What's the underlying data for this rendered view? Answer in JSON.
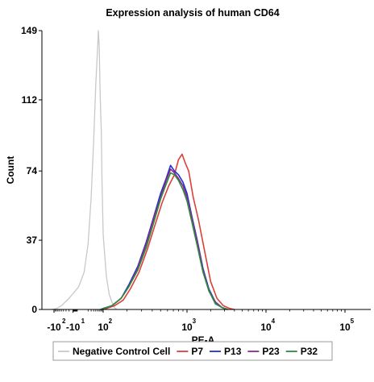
{
  "chart_data": {
    "type": "line",
    "title": "Expression analysis of human CD64",
    "xlabel": "PE-A",
    "ylabel": "Count",
    "x_scale": "biexponential",
    "xlim": [
      -200,
      100000
    ],
    "ylim": [
      0,
      149
    ],
    "grid": false,
    "legend_position": "bottom",
    "y_ticks": [
      {
        "value": 0,
        "label": "0"
      },
      {
        "value": 37,
        "label": "37"
      },
      {
        "value": 74,
        "label": "74"
      },
      {
        "value": 112,
        "label": "112"
      },
      {
        "value": 149,
        "label": "149"
      }
    ],
    "x_ticks": [
      {
        "value": -100,
        "base": "-10",
        "exp": "2"
      },
      {
        "value": -10,
        "base": "-10",
        "exp": "1"
      },
      {
        "value": 100,
        "base": "10",
        "exp": "2"
      },
      {
        "value": 1000,
        "base": "10",
        "exp": "3"
      },
      {
        "value": 10000,
        "base": "10",
        "exp": "4"
      },
      {
        "value": 100000,
        "base": "10",
        "exp": "5"
      }
    ],
    "series": [
      {
        "name": "Negative Control Cell",
        "color": "#c8c8c8",
        "x": [
          -120,
          -80,
          -50,
          -20,
          0,
          10,
          20,
          30,
          40,
          50,
          60,
          65,
          70,
          75,
          80,
          85,
          90,
          100,
          110,
          120,
          130,
          140,
          150
        ],
        "y": [
          0,
          0.5,
          2,
          6,
          12,
          20,
          35,
          60,
          90,
          120,
          140,
          149,
          140,
          120,
          105,
          95,
          70,
          40,
          18,
          8,
          4,
          1,
          0
        ]
      },
      {
        "name": "P7",
        "color": "#d9413a",
        "x": [
          90,
          110,
          140,
          180,
          220,
          280,
          350,
          430,
          520,
          620,
          720,
          800,
          880,
          960,
          1050,
          1200,
          1400,
          1700,
          2000,
          2400,
          2900,
          3500,
          4000
        ],
        "y": [
          0,
          0.5,
          2,
          5,
          11,
          20,
          32,
          45,
          57,
          66,
          72,
          80,
          83,
          78,
          74,
          60,
          48,
          30,
          15,
          6,
          2,
          0.5,
          0
        ]
      },
      {
        "name": "P13",
        "color": "#1f2fd1",
        "x": [
          80,
          100,
          130,
          170,
          210,
          270,
          340,
          420,
          500,
          580,
          650,
          720,
          800,
          900,
          1000,
          1150,
          1350,
          1600,
          1900,
          2300,
          2800,
          3300
        ],
        "y": [
          0,
          0.5,
          2,
          6,
          13,
          23,
          36,
          50,
          62,
          70,
          77,
          74,
          72,
          68,
          62,
          50,
          37,
          22,
          11,
          4,
          1,
          0
        ]
      },
      {
        "name": "P23",
        "color": "#8b2a8c",
        "x": [
          80,
          100,
          130,
          170,
          210,
          270,
          340,
          420,
          500,
          580,
          650,
          720,
          800,
          900,
          1000,
          1150,
          1350,
          1600,
          1900,
          2300,
          2800,
          3300
        ],
        "y": [
          0,
          0.5,
          2,
          6,
          12,
          22,
          35,
          49,
          60,
          69,
          75,
          73,
          70,
          66,
          60,
          49,
          36,
          21,
          10,
          4,
          1,
          0
        ]
      },
      {
        "name": "P32",
        "color": "#2e8b3e",
        "x": [
          80,
          100,
          130,
          170,
          210,
          270,
          340,
          420,
          500,
          580,
          650,
          720,
          800,
          900,
          1000,
          1150,
          1350,
          1600,
          1900,
          2300,
          2800,
          3300
        ],
        "y": [
          0,
          0.5,
          2,
          6,
          12,
          21,
          33,
          47,
          59,
          67,
          73,
          72,
          69,
          64,
          58,
          47,
          34,
          20,
          10,
          3,
          1,
          0
        ]
      }
    ]
  }
}
